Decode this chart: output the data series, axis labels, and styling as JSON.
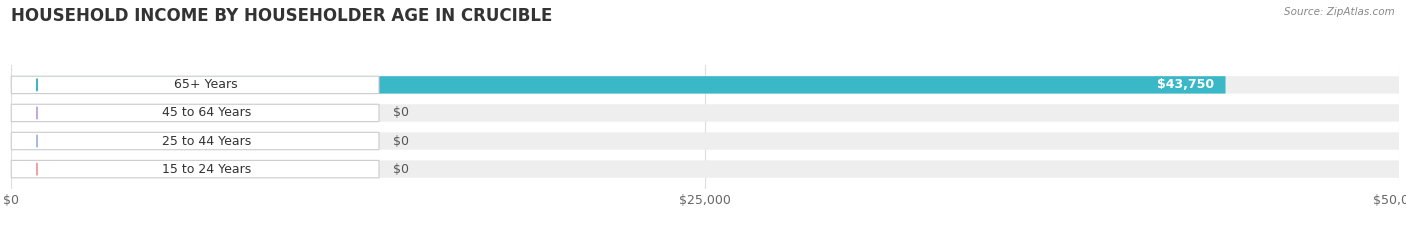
{
  "title": "HOUSEHOLD INCOME BY HOUSEHOLDER AGE IN CRUCIBLE",
  "source": "Source: ZipAtlas.com",
  "categories": [
    "15 to 24 Years",
    "25 to 44 Years",
    "45 to 64 Years",
    "65+ Years"
  ],
  "values": [
    0,
    0,
    0,
    43750
  ],
  "bar_colors": [
    "#f2a0a8",
    "#a8b8e8",
    "#c8a8d8",
    "#3ab8c8"
  ],
  "bar_bg_color": "#eeeeee",
  "xlim": [
    0,
    50000
  ],
  "xticks": [
    0,
    25000,
    50000
  ],
  "xtick_labels": [
    "$0",
    "$25,000",
    "$50,000"
  ],
  "value_labels": [
    "$0",
    "$0",
    "$0",
    "$43,750"
  ],
  "title_fontsize": 12,
  "label_fontsize": 9,
  "background_color": "#ffffff",
  "bar_height": 0.62,
  "label_bg_color": "#ffffff",
  "label_text_color": "#333333",
  "value_color_inside": "#ffffff",
  "value_color_outside": "#555555",
  "grid_color": "#dddddd"
}
